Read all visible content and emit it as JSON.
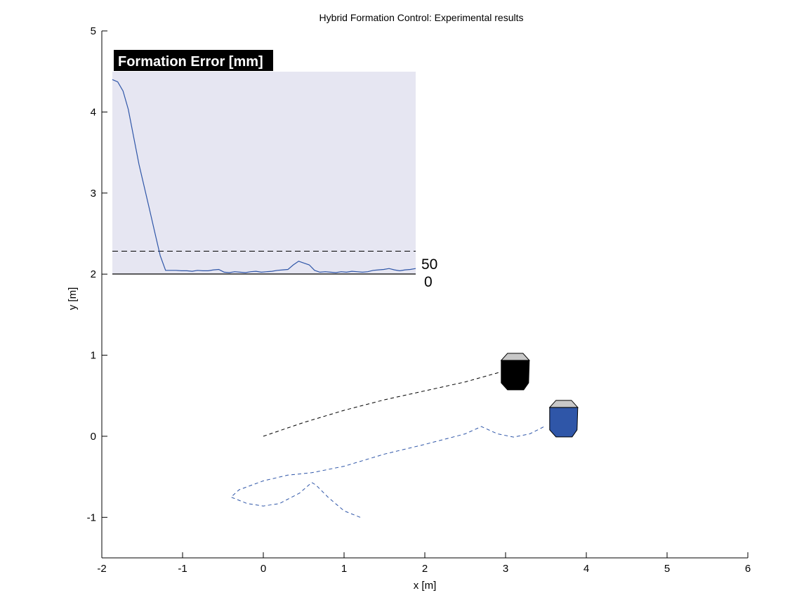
{
  "chart_data": {
    "type": "line",
    "title": "Hybrid Formation Control: Experimental results",
    "xlabel": "x [m]",
    "ylabel": "y [m]",
    "xlim": [
      -2,
      6
    ],
    "ylim": [
      -1.5,
      5
    ],
    "xticks": [
      "-2",
      "-1",
      "0",
      "1",
      "2",
      "3",
      "4",
      "5",
      "6"
    ],
    "yticks": [
      "-1",
      "0",
      "1",
      "2",
      "3",
      "4",
      "5"
    ],
    "grid": false,
    "series": [
      {
        "style": "dashed",
        "color": "#000000",
        "x": [
          0.0,
          0.5,
          1.0,
          1.5,
          2.0,
          2.5,
          3.0
        ],
        "y": [
          0.0,
          0.17,
          0.32,
          0.45,
          0.56,
          0.67,
          0.81
        ]
      },
      {
        "style": "dashed",
        "color": "#2f56a8",
        "x": [
          1.2,
          1.0,
          0.8,
          0.65,
          0.6,
          0.45,
          0.2,
          0.0,
          -0.2,
          -0.4,
          -0.3,
          0.0,
          0.3,
          0.6,
          1.0,
          1.5,
          2.0,
          2.5,
          2.7,
          2.9,
          3.1,
          3.3,
          3.5
        ],
        "y": [
          -1.0,
          -0.92,
          -0.75,
          -0.6,
          -0.57,
          -0.7,
          -0.83,
          -0.86,
          -0.83,
          -0.75,
          -0.66,
          -0.55,
          -0.48,
          -0.45,
          -0.37,
          -0.22,
          -0.1,
          0.03,
          0.12,
          0.03,
          -0.01,
          0.03,
          0.13
        ]
      }
    ],
    "robots": [
      {
        "name": "black-robot",
        "x": 3.12,
        "y": 0.78,
        "body_color": "#000000",
        "top_color": "#c8c8c8"
      },
      {
        "name": "blue-robot",
        "x": 3.72,
        "y": 0.2,
        "body_color": "#2f56a8",
        "top_color": "#c8c8c8"
      }
    ],
    "inset": {
      "title": "Formation Error [mm]",
      "background": "#e6e6f2",
      "line_color": "#2f56a8",
      "threshold_label": "50",
      "baseline_label": "0",
      "threshold_value": 50,
      "ymax": 430,
      "values": [
        425,
        420,
        400,
        360,
        300,
        240,
        190,
        140,
        90,
        40,
        8,
        8,
        8,
        7,
        7,
        6,
        8,
        7,
        7,
        9,
        10,
        4,
        3,
        5,
        4,
        3,
        5,
        6,
        4,
        5,
        6,
        8,
        9,
        10,
        20,
        28,
        24,
        20,
        8,
        4,
        5,
        4,
        3,
        5,
        4,
        6,
        5,
        4,
        5,
        8,
        9,
        10,
        12,
        9,
        7,
        9,
        10,
        12
      ]
    }
  }
}
